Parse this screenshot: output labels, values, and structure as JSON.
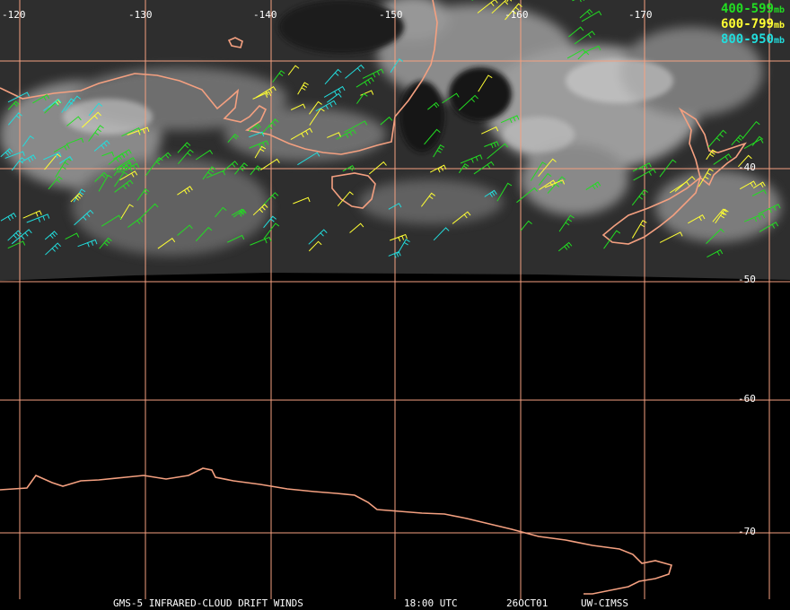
{
  "map": {
    "longitude_labels": [
      "-120",
      "-130",
      "-140",
      "-150",
      "-160",
      "-170"
    ],
    "latitude_labels": [
      "-40",
      "-50",
      "-60",
      "-70"
    ]
  },
  "legend": [
    {
      "range": "400-599",
      "unit": "mb",
      "color": "#22dd22"
    },
    {
      "range": "600-799",
      "unit": "mb",
      "color": "#ffff33"
    },
    {
      "range": "800-950",
      "unit": "mb",
      "color": "#22dddd"
    }
  ],
  "footer": {
    "product": "GMS-5 INFRARED-CLOUD DRIFT WINDS",
    "time": "18:00 UTC",
    "date": "26OCT01",
    "source": "UW-CIMSS"
  },
  "colors": {
    "grid": "#f4a080",
    "coast": "#f4a080",
    "background": "#000000"
  }
}
